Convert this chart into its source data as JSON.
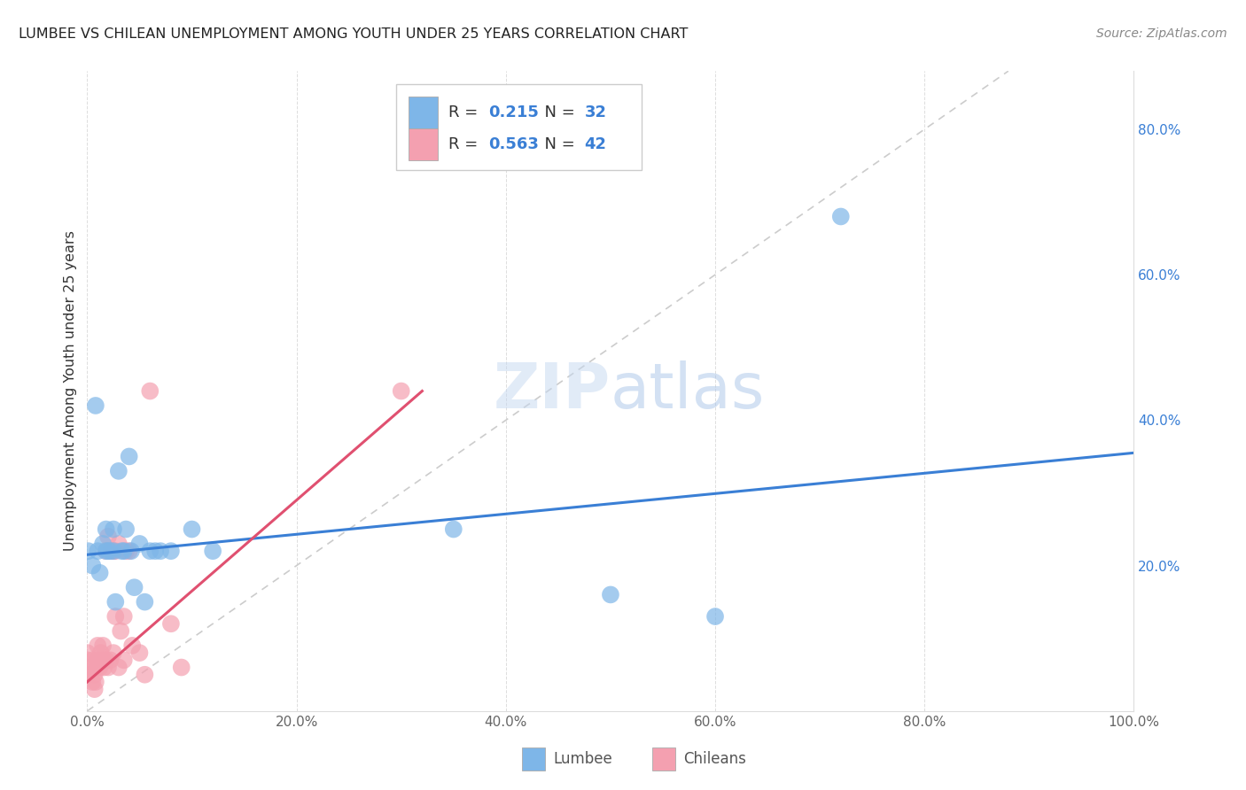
{
  "title": "LUMBEE VS CHILEAN UNEMPLOYMENT AMONG YOUTH UNDER 25 YEARS CORRELATION CHART",
  "source": "Source: ZipAtlas.com",
  "ylabel": "Unemployment Among Youth under 25 years",
  "xlim": [
    0,
    1.0
  ],
  "ylim": [
    0,
    0.88
  ],
  "lumbee_R": 0.215,
  "lumbee_N": 32,
  "chilean_R": 0.563,
  "chilean_N": 42,
  "lumbee_color": "#7EB6E8",
  "chilean_color": "#F4A0B0",
  "lumbee_line_color": "#3A7FD5",
  "chilean_line_color": "#E05070",
  "diagonal_color": "#CCCCCC",
  "R_N_color": "#3A7FD5",
  "text_color": "#333333",
  "tick_color": "#3A7FD5",
  "background_color": "#FFFFFF",
  "lumbee_x": [
    0.001,
    0.005,
    0.008,
    0.01,
    0.012,
    0.015,
    0.018,
    0.018,
    0.02,
    0.022,
    0.025,
    0.025,
    0.027,
    0.03,
    0.033,
    0.035,
    0.037,
    0.04,
    0.042,
    0.045,
    0.05,
    0.055,
    0.06,
    0.065,
    0.07,
    0.08,
    0.1,
    0.12,
    0.35,
    0.5,
    0.6,
    0.72
  ],
  "lumbee_y": [
    0.22,
    0.2,
    0.42,
    0.22,
    0.19,
    0.23,
    0.25,
    0.22,
    0.22,
    0.22,
    0.25,
    0.22,
    0.15,
    0.33,
    0.22,
    0.22,
    0.25,
    0.35,
    0.22,
    0.17,
    0.23,
    0.15,
    0.22,
    0.22,
    0.22,
    0.22,
    0.25,
    0.22,
    0.25,
    0.16,
    0.13,
    0.68
  ],
  "chilean_x": [
    0.0,
    0.0,
    0.0,
    0.0,
    0.003,
    0.005,
    0.005,
    0.007,
    0.007,
    0.008,
    0.01,
    0.01,
    0.01,
    0.012,
    0.013,
    0.015,
    0.015,
    0.016,
    0.018,
    0.018,
    0.02,
    0.02,
    0.022,
    0.023,
    0.025,
    0.025,
    0.027,
    0.027,
    0.03,
    0.03,
    0.032,
    0.035,
    0.035,
    0.037,
    0.04,
    0.043,
    0.05,
    0.055,
    0.06,
    0.08,
    0.09,
    0.3
  ],
  "chilean_y": [
    0.05,
    0.07,
    0.08,
    0.05,
    0.06,
    0.04,
    0.07,
    0.03,
    0.05,
    0.04,
    0.07,
    0.09,
    0.06,
    0.06,
    0.08,
    0.07,
    0.09,
    0.06,
    0.22,
    0.07,
    0.24,
    0.06,
    0.07,
    0.22,
    0.22,
    0.08,
    0.22,
    0.13,
    0.23,
    0.06,
    0.11,
    0.07,
    0.13,
    0.22,
    0.22,
    0.09,
    0.08,
    0.05,
    0.44,
    0.12,
    0.06,
    0.44
  ],
  "lumbee_trend_x": [
    0.0,
    1.0
  ],
  "lumbee_trend_y": [
    0.215,
    0.355
  ],
  "chilean_trend_x": [
    0.0,
    0.32
  ],
  "chilean_trend_y": [
    0.04,
    0.44
  ],
  "yticks_right": [
    0.0,
    0.2,
    0.4,
    0.6,
    0.8
  ],
  "ytick_labels_right": [
    "",
    "20.0%",
    "40.0%",
    "60.0%",
    "80.0%"
  ],
  "xticks": [
    0.0,
    0.2,
    0.4,
    0.6,
    0.8,
    1.0
  ],
  "xtick_labels": [
    "0.0%",
    "20.0%",
    "40.0%",
    "60.0%",
    "80.0%",
    "100.0%"
  ]
}
